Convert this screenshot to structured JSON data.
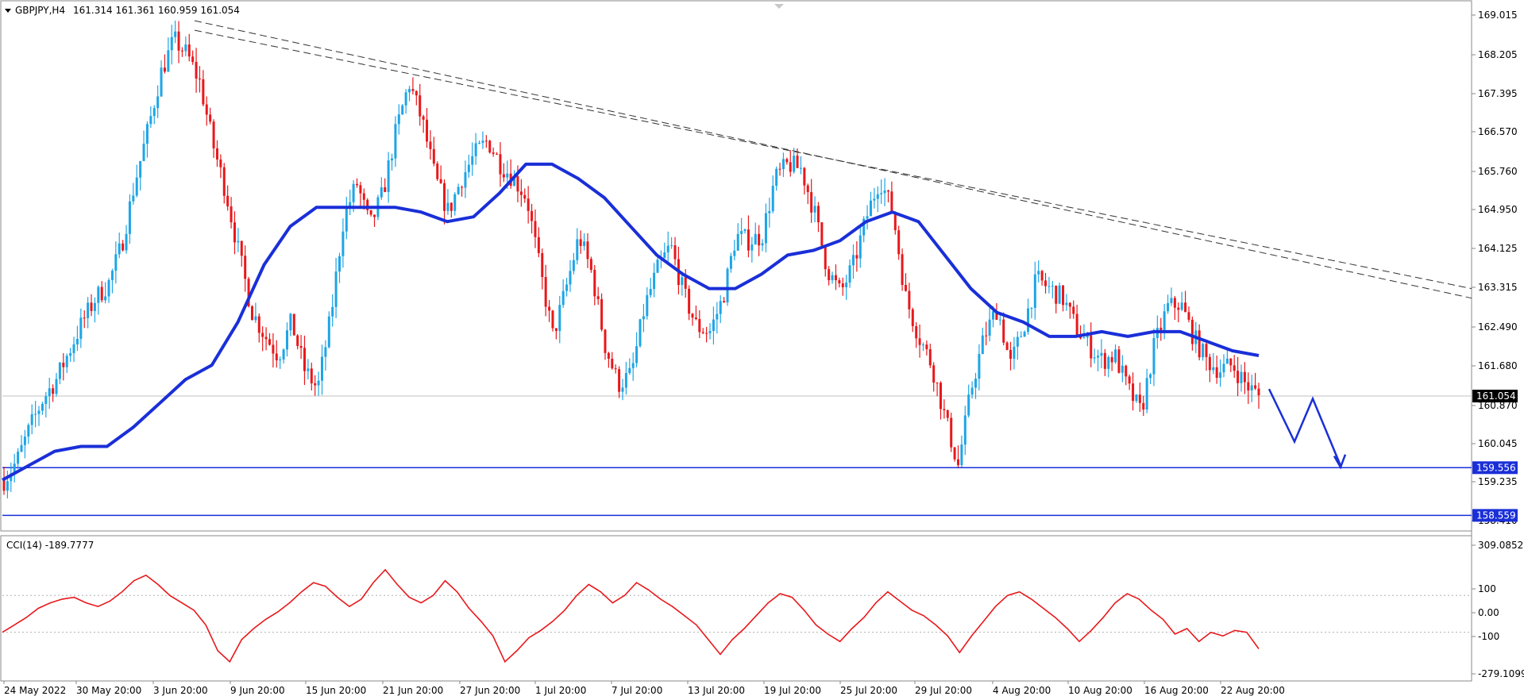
{
  "header": {
    "symbol": "GBPJPY,H4",
    "ohlc": "161.314 161.361 160.959 161.054",
    "indicator_label": "CCI(14) -189.7777"
  },
  "colors": {
    "bull": "#1ea5e6",
    "bear": "#e8181b",
    "ma": "#1a2fd8",
    "cci": "#e8181b",
    "support": "#1a2fd8",
    "trend": "#333333",
    "tag_bg_current": "#000000",
    "tag_bg_level": "#1a2fd8"
  },
  "chart_data": [
    {
      "type": "candlestick",
      "title": "GBPJPY,H4",
      "ylim": [
        158.3,
        169.2
      ],
      "y_ticks": [
        "169.015",
        "168.205",
        "167.395",
        "166.570",
        "165.760",
        "164.950",
        "164.125",
        "163.315",
        "162.490",
        "161.680",
        "160.870",
        "160.045",
        "159.235",
        "158.410"
      ],
      "x_ticks": [
        "24 May 2022",
        "30 May 20:00",
        "3 Jun 20:00",
        "9 Jun 20:00",
        "15 Jun 20:00",
        "21 Jun 20:00",
        "27 Jun 20:00",
        "1 Jul 20:00",
        "7 Jul 20:00",
        "13 Jul 20:00",
        "19 Jul 20:00",
        "25 Jul 20:00",
        "29 Jul 20:00",
        "4 Aug 20:00",
        "10 Aug 20:00",
        "16 Aug 20:00",
        "22 Aug 20:00"
      ],
      "current_price": "161.054",
      "horizontal_levels": [
        "159.556",
        "158.559"
      ],
      "close_path": [
        159.3,
        159.7,
        160.4,
        161.0,
        161.4,
        162.0,
        162.6,
        163.1,
        163.4,
        164.2,
        165.5,
        166.6,
        167.8,
        168.5,
        168.2,
        167.6,
        166.3,
        165.3,
        164.0,
        162.8,
        162.3,
        161.9,
        162.6,
        161.6,
        161.2,
        162.7,
        164.8,
        165.5,
        164.6,
        165.3,
        166.6,
        167.6,
        166.8,
        165.6,
        164.9,
        165.6,
        166.1,
        166.4,
        165.9,
        165.6,
        165.2,
        163.7,
        162.3,
        163.3,
        164.4,
        163.6,
        162.1,
        161.3,
        161.5,
        162.9,
        163.7,
        164.2,
        163.2,
        162.5,
        162.4,
        163.1,
        164.4,
        164.3,
        164.4,
        165.6,
        165.9,
        165.8,
        164.9,
        163.7,
        163.2,
        163.8,
        164.8,
        165.6,
        164.9,
        163.1,
        162.3,
        161.7,
        160.6,
        159.6,
        161.2,
        162.3,
        162.9,
        161.7,
        162.5,
        163.5,
        163.3,
        163.1,
        162.5,
        162.1,
        161.8,
        161.9,
        161.2,
        160.7,
        162.1,
        162.9,
        163.0,
        162.3,
        161.8,
        161.6,
        161.7,
        161.3,
        161.054
      ],
      "ma_path": [
        159.3,
        159.6,
        159.9,
        160.0,
        160.0,
        160.4,
        160.9,
        161.4,
        161.7,
        162.6,
        163.8,
        164.6,
        165.0,
        165.0,
        165.0,
        165.0,
        164.9,
        164.7,
        164.8,
        165.3,
        165.9,
        165.9,
        165.6,
        165.2,
        164.6,
        164.0,
        163.6,
        163.3,
        163.3,
        163.6,
        164.0,
        164.1,
        164.3,
        164.7,
        164.9,
        164.7,
        164.0,
        163.3,
        162.8,
        162.6,
        162.3,
        162.3,
        162.4,
        162.3,
        162.4,
        162.4,
        162.2,
        162.0,
        161.9
      ],
      "trendlines": [
        {
          "from": [
            0,
            168.9
          ],
          "to": [
            1,
            163.1
          ]
        },
        {
          "from": [
            0,
            168.7
          ],
          "to": [
            1,
            163.3
          ]
        }
      ],
      "projection_arrow": [
        161.2,
        160.1,
        161.0,
        159.6
      ]
    },
    {
      "type": "line",
      "title": "CCI(14) -189.7777",
      "ylim": [
        -330,
        360
      ],
      "y_ticks": [
        "309.0852",
        "100",
        "0.00",
        "-100",
        "-279.1099"
      ],
      "current_value": -189.7777,
      "values": [
        -100,
        -60,
        -20,
        30,
        60,
        80,
        90,
        60,
        40,
        70,
        120,
        180,
        210,
        160,
        100,
        60,
        20,
        -60,
        -200,
        -260,
        -140,
        -80,
        -30,
        10,
        60,
        120,
        170,
        150,
        90,
        40,
        80,
        170,
        240,
        160,
        90,
        60,
        100,
        180,
        120,
        30,
        -40,
        -120,
        -260,
        -200,
        -130,
        -90,
        -40,
        20,
        100,
        160,
        120,
        60,
        100,
        170,
        130,
        80,
        40,
        -10,
        -60,
        -140,
        -220,
        -140,
        -80,
        -10,
        60,
        110,
        90,
        20,
        -60,
        -110,
        -150,
        -80,
        -20,
        60,
        120,
        70,
        20,
        -10,
        -60,
        -120,
        -210,
        -120,
        -40,
        40,
        100,
        120,
        80,
        30,
        -20,
        -80,
        -150,
        -90,
        -20,
        60,
        110,
        80,
        20,
        -30,
        -110,
        -80,
        -150,
        -100,
        -120,
        -90,
        -100,
        -190
      ]
    }
  ]
}
